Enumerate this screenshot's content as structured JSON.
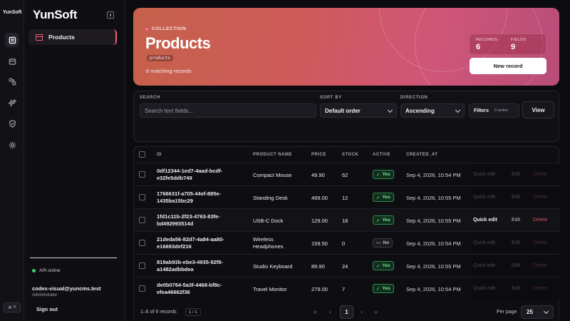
{
  "rail": {
    "brand": "YunSoft",
    "icons": [
      "collections-icon",
      "inbox-icon",
      "relations-icon",
      "sparkle-icon",
      "shield-icon",
      "gear-icon"
    ],
    "shortcut": {
      "modifier": "⌘",
      "key": "K"
    }
  },
  "sidebar": {
    "logo": "YunSoft",
    "nav": [
      {
        "label": "Products"
      }
    ],
    "api_status": "API online",
    "user": {
      "email": "codex-visual@yuncms.test",
      "role": "Administrator"
    },
    "sign_out": "Sign out"
  },
  "hero": {
    "tag": "COLLECTION",
    "title": "Products",
    "slug": "products",
    "matching": "6 matching records",
    "stats": {
      "records_label": "RECORDS",
      "records_value": "6",
      "fields_label": "FIELDS",
      "fields_value": "9"
    },
    "new_record": "New record"
  },
  "filters": {
    "search_label": "SEARCH",
    "search_placeholder": "Search text fields...",
    "sort_label": "SORT BY",
    "sort_value": "Default order",
    "direction_label": "DIRECTION",
    "direction_value": "Ascending",
    "filters_button": "Filters",
    "filters_badge": "0 active",
    "view_button": "View"
  },
  "table": {
    "headers": {
      "id": "ID",
      "name": "PRODUCT NAME",
      "price": "PRICE",
      "stock": "STOCK",
      "active": "ACTIVE",
      "created": "CREATED_AT"
    },
    "actions": {
      "quick_edit": "Quick edit",
      "edit": "Edit",
      "delete": "Delete"
    },
    "rows": [
      {
        "id_a": "0df12344-1ed7-4aad-bcdf-",
        "id_b": "e32fe5ddb749",
        "name_a": "Compact Mouse",
        "name_b": "",
        "price": "49.90",
        "stock": "62",
        "active": "Yes",
        "created": "Sep 4, 2026, 10:54 PM"
      },
      {
        "id_a": "1766631f-a705-44ef-885e-",
        "id_b": "1435ba15bc29",
        "name_a": "Standing Desk",
        "name_b": "",
        "price": "499.00",
        "stock": "12",
        "active": "Yes",
        "created": "Sep 4, 2026, 10:55 PM"
      },
      {
        "id_a": "1fd1c11b-2f23-4763-83fe-",
        "id_b": "bd492993514d",
        "name_a": "USB-C Dock",
        "name_b": "",
        "price": "129.00",
        "stock": "18",
        "active": "Yes",
        "created": "Sep 4, 2026, 10:55 PM"
      },
      {
        "id_a": "21deda56-82d7-4a84-aa80-",
        "id_b": "e16693def216",
        "name_a": "Wireless",
        "name_b": "Headphones",
        "price": "159.50",
        "stock": "0",
        "active": "No",
        "created": "Sep 4, 2026, 10:54 PM"
      },
      {
        "id_a": "819ab93b-ebe3-4935-92f9-",
        "id_b": "a1482adbbdea",
        "name_a": "Studio Keyboard",
        "name_b": "",
        "price": "89.90",
        "stock": "24",
        "active": "Yes",
        "created": "Sep 4, 2026, 10:55 PM"
      },
      {
        "id_a": "de0b0764-5a3f-4468-bf8c-",
        "id_b": "efea46662f36",
        "name_a": "Travel Monitor",
        "name_b": "",
        "price": "279.00",
        "stock": "7",
        "active": "Yes",
        "created": "Sep 4, 2026, 10:54 PM"
      }
    ]
  },
  "footer": {
    "records": "1–6 of 6 records",
    "pages": "1 / 1",
    "current_page": "1",
    "per_page_label": "Per page",
    "per_page_value": "25"
  },
  "colors": {
    "accent": "#ef5f73",
    "success": "#3ecf6f",
    "danger": "#e04a5c"
  }
}
